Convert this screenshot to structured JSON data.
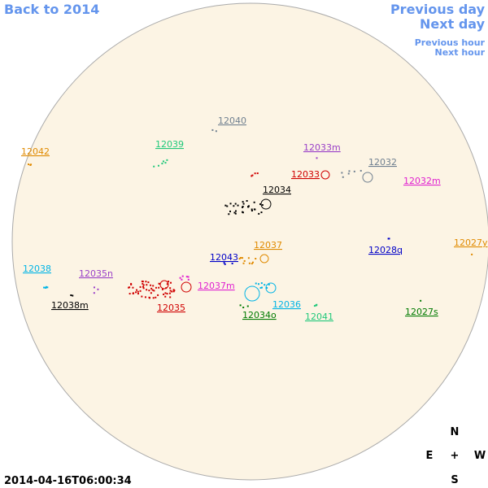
{
  "nav": {
    "back": "Back to 2014",
    "previous_day": "Previous day",
    "next_day": "Next day",
    "previous_hour": "Previous hour",
    "next_hour": "Next hour"
  },
  "timestamp": "2014-04-16T06:00:34",
  "compass": {
    "north": "N",
    "east": "E",
    "center": "+",
    "west": "W",
    "south": "S"
  },
  "regions": [
    {
      "label": "12040",
      "color": "#708090"
    },
    {
      "label": "12039",
      "color": "#20c87a"
    },
    {
      "label": "12042",
      "color": "#e08a00"
    },
    {
      "label": "12033m",
      "color": "#9a40c8"
    },
    {
      "label": "12032",
      "color": "#708090"
    },
    {
      "label": "12033",
      "color": "#d00000"
    },
    {
      "label": "12032m",
      "color": "#e020d0"
    },
    {
      "label": "12034",
      "color": "#000000"
    },
    {
      "label": "12037",
      "color": "#e08a00"
    },
    {
      "label": "12027y",
      "color": "#e08a00"
    },
    {
      "label": "12043",
      "color": "#0000c8"
    },
    {
      "label": "12028q",
      "color": "#0000c8"
    },
    {
      "label": "12038",
      "color": "#00b4e6"
    },
    {
      "label": "12035n",
      "color": "#9a40c8"
    },
    {
      "label": "12037m",
      "color": "#e020d0"
    },
    {
      "label": "12038m",
      "color": "#000000"
    },
    {
      "label": "12035",
      "color": "#d00000"
    },
    {
      "label": "12036",
      "color": "#00b4e6"
    },
    {
      "label": "12034o",
      "color": "#007a00"
    },
    {
      "label": "12041",
      "color": "#20c87a"
    },
    {
      "label": "12027s",
      "color": "#007a00"
    }
  ]
}
